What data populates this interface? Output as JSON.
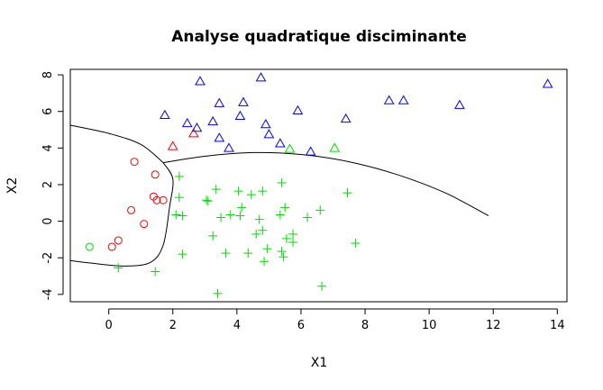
{
  "chart_data": {
    "type": "scatter",
    "title": "Analyse quadratique disciminante",
    "xlabel": "X1",
    "ylabel": "X2",
    "xlim": [
      -1.2,
      14.3
    ],
    "ylim": [
      -4.4,
      8.3
    ],
    "x_ticks": [
      "0",
      "2",
      "4",
      "6",
      "8",
      "10",
      "12",
      "14"
    ],
    "y_ticks": [
      "-4",
      "-2",
      "0",
      "2",
      "4",
      "6",
      "8"
    ],
    "grid": false,
    "series": [
      {
        "marker": "circle",
        "color": "#ff0000",
        "points": [
          [
            0.8,
            3.25
          ],
          [
            1.45,
            2.55
          ],
          [
            1.4,
            1.35
          ],
          [
            1.5,
            1.15
          ],
          [
            1.7,
            1.15
          ],
          [
            0.7,
            0.6
          ],
          [
            1.1,
            -0.15
          ],
          [
            0.3,
            -1.05
          ],
          [
            0.1,
            -1.4
          ]
        ]
      },
      {
        "marker": "triangle",
        "color": "#ff0000",
        "points": [
          [
            2.0,
            4.1
          ],
          [
            2.65,
            4.8
          ]
        ]
      },
      {
        "marker": "circle",
        "color": "#00dd00",
        "points": [
          [
            -0.6,
            -1.4
          ]
        ]
      },
      {
        "marker": "triangle",
        "color": "#0000ff",
        "points": [
          [
            2.85,
            7.65
          ],
          [
            4.75,
            7.85
          ],
          [
            3.45,
            6.45
          ],
          [
            4.2,
            6.5
          ],
          [
            1.75,
            5.8
          ],
          [
            4.1,
            5.75
          ],
          [
            5.9,
            6.05
          ],
          [
            2.45,
            5.35
          ],
          [
            3.25,
            5.45
          ],
          [
            4.9,
            5.3
          ],
          [
            2.75,
            5.1
          ],
          [
            5.0,
            4.75
          ],
          [
            3.45,
            4.55
          ],
          [
            5.35,
            4.25
          ],
          [
            3.75,
            4.0
          ],
          [
            6.3,
            3.8
          ],
          [
            7.4,
            5.6
          ],
          [
            8.75,
            6.6
          ],
          [
            9.2,
            6.6
          ],
          [
            10.95,
            6.35
          ],
          [
            13.7,
            7.5
          ]
        ]
      },
      {
        "marker": "triangle",
        "color": "#00dd00",
        "points": [
          [
            5.65,
            3.95
          ],
          [
            7.05,
            4.0
          ]
        ]
      },
      {
        "marker": "plus",
        "color": "#00dd00",
        "points": [
          [
            2.2,
            2.45
          ],
          [
            2.2,
            1.3
          ],
          [
            2.1,
            0.35
          ],
          [
            2.3,
            0.3
          ],
          [
            3.1,
            1.1
          ],
          [
            3.05,
            1.15
          ],
          [
            3.35,
            1.75
          ],
          [
            4.05,
            1.65
          ],
          [
            4.45,
            1.45
          ],
          [
            4.8,
            1.65
          ],
          [
            5.4,
            2.1
          ],
          [
            7.45,
            1.55
          ],
          [
            4.15,
            0.75
          ],
          [
            5.5,
            0.75
          ],
          [
            6.6,
            0.6
          ],
          [
            3.5,
            0.2
          ],
          [
            3.8,
            0.35
          ],
          [
            4.1,
            0.3
          ],
          [
            4.7,
            0.1
          ],
          [
            5.35,
            0.35
          ],
          [
            6.2,
            0.2
          ],
          [
            4.8,
            -0.5
          ],
          [
            4.6,
            -0.7
          ],
          [
            5.55,
            -0.95
          ],
          [
            5.75,
            -0.7
          ],
          [
            5.75,
            -1.15
          ],
          [
            3.25,
            -0.8
          ],
          [
            4.95,
            -1.5
          ],
          [
            7.7,
            -1.2
          ],
          [
            2.3,
            -1.8
          ],
          [
            3.65,
            -1.75
          ],
          [
            4.35,
            -1.75
          ],
          [
            5.4,
            -1.65
          ],
          [
            5.45,
            -1.95
          ],
          [
            4.85,
            -2.2
          ],
          [
            0.3,
            -2.55
          ],
          [
            1.45,
            -2.75
          ],
          [
            6.65,
            -3.55
          ],
          [
            3.4,
            -3.95
          ]
        ]
      }
    ],
    "boundaries": [
      {
        "color": "#000000",
        "points": [
          [
            -1.2,
            5.25
          ],
          [
            0.0,
            4.8
          ],
          [
            1.0,
            4.2
          ],
          [
            1.7,
            3.2
          ]
        ]
      },
      {
        "color": "#000000",
        "points": [
          [
            1.7,
            3.2
          ],
          [
            2.0,
            2.3
          ],
          [
            1.9,
            0.8
          ],
          [
            1.7,
            -1.3
          ],
          [
            1.3,
            -2.25
          ],
          [
            0.5,
            -2.45
          ],
          [
            -0.5,
            -2.3
          ],
          [
            -1.2,
            -2.15
          ]
        ]
      },
      {
        "color": "#000000",
        "points": [
          [
            1.7,
            3.2
          ],
          [
            3.0,
            3.55
          ],
          [
            4.5,
            3.75
          ],
          [
            6.0,
            3.65
          ],
          [
            7.5,
            3.25
          ],
          [
            9.0,
            2.55
          ],
          [
            10.5,
            1.55
          ],
          [
            11.85,
            0.3
          ]
        ]
      }
    ]
  }
}
